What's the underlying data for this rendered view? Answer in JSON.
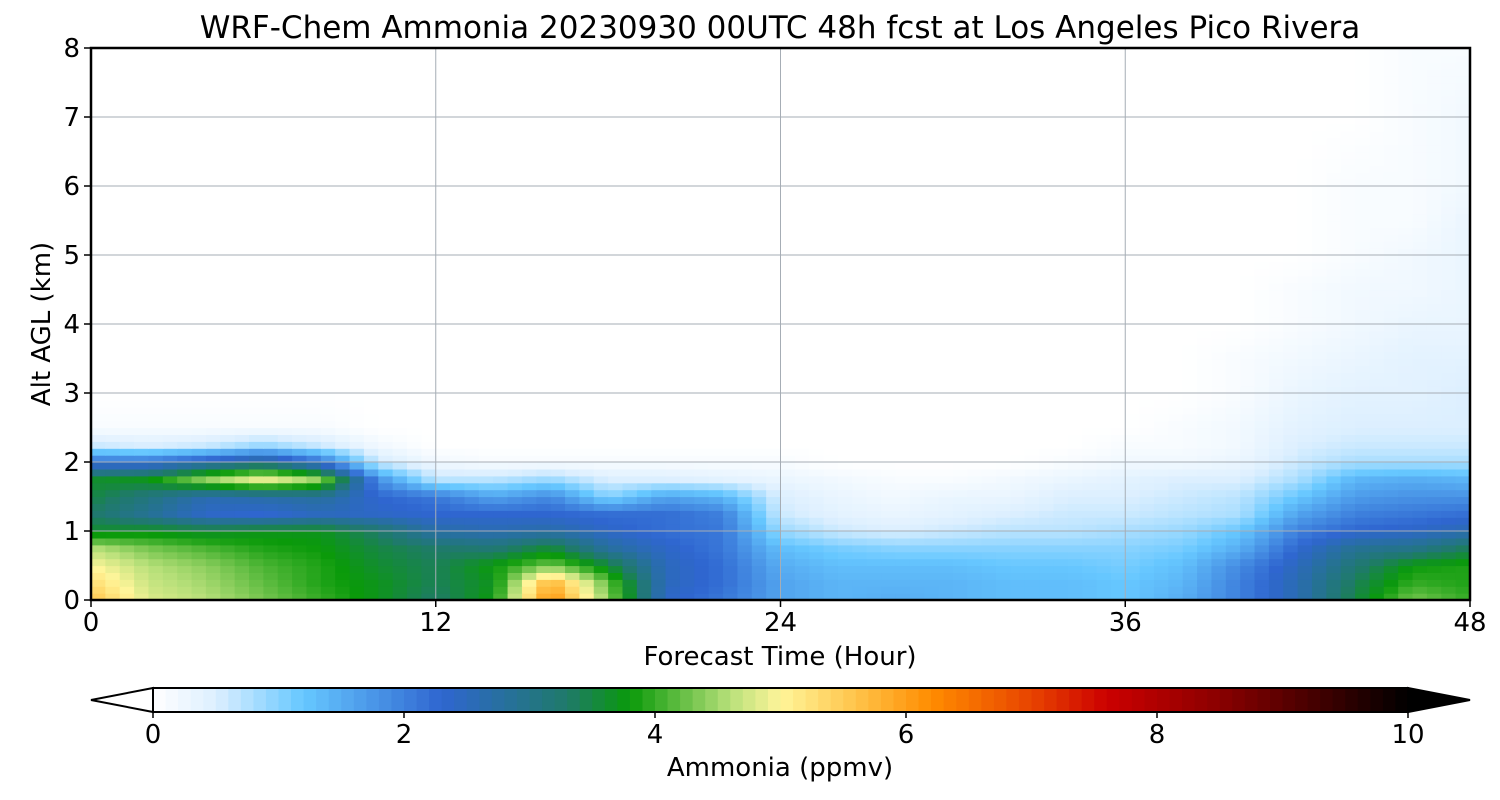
{
  "chart_data": {
    "type": "heatmap",
    "title": "WRF-Chem Ammonia  20230930 00UTC 48h fcst at Los Angeles Pico Rivera",
    "xlabel": "Forecast Time (Hour)",
    "ylabel": "Alt AGL (km)",
    "xlim": [
      0,
      48
    ],
    "ylim": [
      0,
      8
    ],
    "xticks": [
      0,
      12,
      24,
      36,
      48
    ],
    "yticks": [
      0,
      1,
      2,
      3,
      4,
      5,
      6,
      7,
      8
    ],
    "grid": true,
    "colorbar": {
      "label": "Ammonia  (ppmv)",
      "min": 0,
      "max": 10,
      "ticks": [
        0,
        2,
        4,
        6,
        8,
        10
      ],
      "extend": "both",
      "orientation": "horizontal",
      "stops": [
        {
          "v": 0,
          "c": "#ffffff"
        },
        {
          "v": 0.5,
          "c": "#dcefff"
        },
        {
          "v": 1.2,
          "c": "#66c7ff"
        },
        {
          "v": 2.3,
          "c": "#2f66d0"
        },
        {
          "v": 3.3,
          "c": "#1f7a6a"
        },
        {
          "v": 3.8,
          "c": "#0a9a0a"
        },
        {
          "v": 4.6,
          "c": "#b8e07a"
        },
        {
          "v": 5.0,
          "c": "#fff59a"
        },
        {
          "v": 5.6,
          "c": "#ffc44a"
        },
        {
          "v": 6.2,
          "c": "#ff8c00"
        },
        {
          "v": 7.0,
          "c": "#e84400"
        },
        {
          "v": 7.6,
          "c": "#cc0000"
        },
        {
          "v": 8.5,
          "c": "#8a0000"
        },
        {
          "v": 10,
          "c": "#000000"
        }
      ]
    },
    "x": [
      0,
      2,
      4,
      6,
      8,
      10,
      12,
      14,
      16,
      18,
      20,
      22,
      24,
      26,
      28,
      30,
      32,
      34,
      36,
      38,
      40,
      42,
      44,
      46,
      48
    ],
    "y": [
      0,
      0.25,
      0.5,
      0.75,
      1.0,
      1.25,
      1.5,
      1.75,
      2.0,
      2.25,
      2.5,
      3.0,
      3.5,
      4.0,
      4.5,
      5.0,
      5.5,
      6.0,
      7.0,
      8.0
    ],
    "z": [
      [
        5.6,
        4.8,
        4.6,
        4.3,
        4.0,
        3.7,
        3.3,
        3.8,
        6.2,
        4.4,
        2.4,
        2.1,
        1.6,
        1.4,
        1.5,
        1.4,
        1.3,
        1.3,
        1.2,
        1.5,
        2.0,
        2.6,
        3.5,
        4.3,
        4.0
      ],
      [
        5.3,
        4.7,
        4.5,
        4.2,
        3.9,
        3.7,
        3.4,
        3.7,
        5.8,
        4.2,
        2.5,
        2.2,
        1.6,
        1.4,
        1.4,
        1.4,
        1.3,
        1.3,
        1.2,
        1.4,
        2.0,
        2.6,
        3.4,
        4.0,
        3.9
      ],
      [
        5.0,
        4.6,
        4.4,
        4.1,
        3.9,
        3.6,
        3.4,
        3.8,
        4.3,
        3.6,
        2.5,
        2.2,
        1.5,
        1.3,
        1.3,
        1.3,
        1.2,
        1.2,
        1.1,
        1.3,
        1.9,
        2.5,
        3.2,
        3.8,
        3.9
      ],
      [
        4.6,
        4.3,
        4.1,
        3.9,
        3.8,
        3.5,
        3.3,
        3.2,
        3.6,
        2.8,
        2.4,
        2.1,
        1.3,
        1.1,
        1.0,
        1.0,
        1.0,
        1.0,
        1.0,
        1.1,
        1.5,
        2.3,
        2.9,
        3.0,
        3.4
      ],
      [
        3.6,
        3.7,
        3.6,
        3.7,
        3.7,
        3.3,
        2.7,
        2.6,
        2.7,
        2.4,
        2.2,
        2.1,
        0.9,
        0.6,
        0.5,
        0.6,
        0.7,
        0.7,
        0.8,
        0.9,
        1.2,
        2.0,
        2.3,
        2.4,
        2.6
      ],
      [
        3.3,
        2.9,
        2.4,
        2.3,
        2.5,
        2.4,
        2.3,
        2.3,
        2.3,
        2.2,
        2.2,
        2.0,
        0.6,
        0.4,
        0.3,
        0.4,
        0.5,
        0.6,
        0.6,
        0.7,
        0.8,
        1.6,
        2.0,
        2.1,
        2.2
      ],
      [
        3.5,
        3.1,
        2.6,
        2.7,
        2.8,
        2.3,
        2.1,
        1.6,
        1.9,
        1.0,
        1.6,
        1.4,
        0.5,
        0.3,
        0.2,
        0.3,
        0.3,
        0.5,
        0.5,
        0.6,
        0.7,
        1.2,
        1.7,
        1.8,
        1.8
      ],
      [
        3.6,
        3.7,
        4.4,
        4.9,
        4.4,
        1.8,
        0.7,
        0.7,
        0.9,
        0.5,
        0.5,
        0.4,
        0.3,
        0.2,
        0.1,
        0.1,
        0.2,
        0.3,
        0.4,
        0.5,
        0.5,
        0.8,
        1.4,
        1.5,
        1.4
      ],
      [
        2.2,
        2.2,
        2.6,
        3.0,
        2.2,
        0.6,
        0.2,
        0.1,
        0.1,
        0.1,
        0.1,
        0.1,
        0.1,
        0.0,
        0.0,
        0.0,
        0.0,
        0.1,
        0.2,
        0.2,
        0.3,
        0.6,
        0.8,
        0.8,
        0.8
      ],
      [
        0.6,
        0.5,
        0.6,
        0.9,
        0.6,
        0.2,
        0.0,
        0.0,
        0.0,
        0.0,
        0.0,
        0.0,
        0.0,
        0.0,
        0.0,
        0.0,
        0.0,
        0.0,
        0.1,
        0.1,
        0.2,
        0.5,
        0.6,
        0.6,
        0.6
      ],
      [
        0.1,
        0.1,
        0.1,
        0.1,
        0.1,
        0.0,
        0.0,
        0.0,
        0.0,
        0.0,
        0.0,
        0.0,
        0.0,
        0.0,
        0.0,
        0.0,
        0.0,
        0.0,
        0.0,
        0.1,
        0.2,
        0.4,
        0.5,
        0.5,
        0.5
      ],
      [
        0.0,
        0.0,
        0.0,
        0.0,
        0.0,
        0.0,
        0.0,
        0.0,
        0.0,
        0.0,
        0.0,
        0.0,
        0.0,
        0.0,
        0.0,
        0.0,
        0.0,
        0.0,
        0.0,
        0.0,
        0.1,
        0.3,
        0.4,
        0.4,
        0.5
      ],
      [
        0.0,
        0.0,
        0.0,
        0.0,
        0.0,
        0.0,
        0.0,
        0.0,
        0.0,
        0.0,
        0.0,
        0.0,
        0.0,
        0.0,
        0.0,
        0.0,
        0.0,
        0.0,
        0.0,
        0.0,
        0.1,
        0.2,
        0.3,
        0.4,
        0.4
      ],
      [
        0.0,
        0.0,
        0.0,
        0.0,
        0.0,
        0.0,
        0.0,
        0.0,
        0.0,
        0.0,
        0.0,
        0.0,
        0.0,
        0.0,
        0.0,
        0.0,
        0.0,
        0.0,
        0.0,
        0.0,
        0.0,
        0.1,
        0.2,
        0.3,
        0.3
      ],
      [
        0.0,
        0.0,
        0.0,
        0.0,
        0.0,
        0.0,
        0.0,
        0.0,
        0.0,
        0.0,
        0.0,
        0.0,
        0.0,
        0.0,
        0.0,
        0.0,
        0.0,
        0.0,
        0.0,
        0.0,
        0.0,
        0.1,
        0.2,
        0.2,
        0.3
      ],
      [
        0.0,
        0.0,
        0.0,
        0.0,
        0.0,
        0.0,
        0.0,
        0.0,
        0.0,
        0.0,
        0.0,
        0.0,
        0.0,
        0.0,
        0.0,
        0.0,
        0.0,
        0.0,
        0.0,
        0.0,
        0.0,
        0.0,
        0.1,
        0.2,
        0.3
      ],
      [
        0.0,
        0.0,
        0.0,
        0.0,
        0.0,
        0.0,
        0.0,
        0.0,
        0.0,
        0.0,
        0.0,
        0.0,
        0.0,
        0.0,
        0.0,
        0.0,
        0.0,
        0.0,
        0.0,
        0.0,
        0.0,
        0.0,
        0.1,
        0.1,
        0.3
      ],
      [
        0.0,
        0.0,
        0.0,
        0.0,
        0.0,
        0.0,
        0.0,
        0.0,
        0.0,
        0.0,
        0.0,
        0.0,
        0.0,
        0.0,
        0.0,
        0.0,
        0.0,
        0.0,
        0.0,
        0.0,
        0.0,
        0.0,
        0.1,
        0.1,
        0.2
      ],
      [
        0.0,
        0.0,
        0.0,
        0.0,
        0.0,
        0.0,
        0.0,
        0.0,
        0.0,
        0.0,
        0.0,
        0.0,
        0.0,
        0.0,
        0.0,
        0.0,
        0.0,
        0.0,
        0.0,
        0.0,
        0.0,
        0.0,
        0.0,
        0.1,
        0.2
      ],
      [
        0.0,
        0.0,
        0.0,
        0.0,
        0.0,
        0.0,
        0.0,
        0.0,
        0.0,
        0.0,
        0.0,
        0.0,
        0.0,
        0.0,
        0.0,
        0.0,
        0.0,
        0.0,
        0.0,
        0.0,
        0.0,
        0.0,
        0.0,
        0.1,
        0.1
      ]
    ]
  }
}
